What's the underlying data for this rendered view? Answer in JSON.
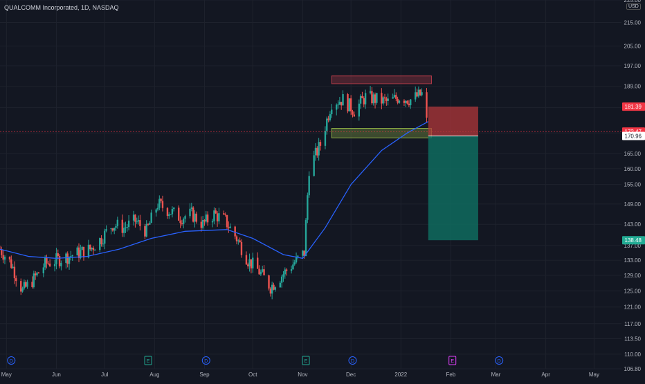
{
  "chart_data": {
    "type": "candlestick",
    "title": "QUALCOMM Incorporated, 1D, NASDAQ",
    "currency": "USD",
    "y_scale": "log",
    "ylim": [
      106.8,
      225.0
    ],
    "y_ticks": [
      "106.80",
      "110.00",
      "113.50",
      "117.00",
      "121.00",
      "125.00",
      "129.00",
      "133.00",
      "137.00",
      "143.00",
      "149.00",
      "155.00",
      "160.00",
      "165.00",
      "172.00",
      "181.00",
      "189.00",
      "197.00",
      "205.00",
      "215.00",
      "225.00"
    ],
    "x_ticks": [
      {
        "label": "May",
        "date": "2021-05-01"
      },
      {
        "label": "Jun",
        "date": "2021-06-01"
      },
      {
        "label": "Jul",
        "date": "2021-07-01"
      },
      {
        "label": "Aug",
        "date": "2021-08-01"
      },
      {
        "label": "Sep",
        "date": "2021-09-01"
      },
      {
        "label": "Oct",
        "date": "2021-10-01"
      },
      {
        "label": "Nov",
        "date": "2021-11-01"
      },
      {
        "label": "Dec",
        "date": "2021-12-01"
      },
      {
        "label": "2022",
        "date": "2022-01-01"
      },
      {
        "label": "Feb",
        "date": "2022-02-01"
      },
      {
        "label": "Mar",
        "date": "2022-03-01"
      },
      {
        "label": "Apr",
        "date": "2022-04-01"
      },
      {
        "label": "May",
        "date": "2022-05-01"
      }
    ],
    "xlim": [
      "2021-04-27",
      "2022-05-18"
    ],
    "price_series": [
      [
        "2021-04-27",
        136.0
      ],
      [
        "2021-05-04",
        132.0
      ],
      [
        "2021-05-11",
        125.0
      ],
      [
        "2021-05-18",
        128.0
      ],
      [
        "2021-05-25",
        132.0
      ],
      [
        "2021-06-01",
        133.0
      ],
      [
        "2021-06-08",
        134.0
      ],
      [
        "2021-06-15",
        135.0
      ],
      [
        "2021-06-22",
        136.0
      ],
      [
        "2021-06-29",
        139.0
      ],
      [
        "2021-07-06",
        143.0
      ],
      [
        "2021-07-13",
        142.0
      ],
      [
        "2021-07-20",
        144.0
      ],
      [
        "2021-07-27",
        141.0
      ],
      [
        "2021-08-03",
        149.0
      ],
      [
        "2021-08-10",
        147.0
      ],
      [
        "2021-08-17",
        145.0
      ],
      [
        "2021-08-24",
        146.0
      ],
      [
        "2021-08-31",
        143.0
      ],
      [
        "2021-09-07",
        146.0
      ],
      [
        "2021-09-14",
        144.0
      ],
      [
        "2021-09-21",
        139.0
      ],
      [
        "2021-09-28",
        133.0
      ],
      [
        "2021-10-05",
        130.0
      ],
      [
        "2021-10-12",
        126.0
      ],
      [
        "2021-10-19",
        129.0
      ],
      [
        "2021-10-26",
        132.0
      ],
      [
        "2021-11-02",
        135.0
      ],
      [
        "2021-11-05",
        160.0
      ],
      [
        "2021-11-12",
        168.0
      ],
      [
        "2021-11-19",
        183.0
      ],
      [
        "2021-11-26",
        184.0
      ],
      [
        "2021-12-03",
        180.0
      ],
      [
        "2021-12-10",
        185.0
      ],
      [
        "2021-12-17",
        184.0
      ],
      [
        "2021-12-24",
        183.0
      ],
      [
        "2021-12-31",
        185.0
      ],
      [
        "2022-01-07",
        184.0
      ],
      [
        "2022-01-14",
        186.0
      ],
      [
        "2022-01-18",
        172.47
      ]
    ],
    "moving_average": [
      [
        "2021-04-27",
        136.0
      ],
      [
        "2021-05-15",
        134.0
      ],
      [
        "2021-06-01",
        133.5
      ],
      [
        "2021-06-20",
        134.0
      ],
      [
        "2021-07-10",
        136.0
      ],
      [
        "2021-07-30",
        139.0
      ],
      [
        "2021-08-20",
        141.0
      ],
      [
        "2021-09-15",
        141.5
      ],
      [
        "2021-10-01",
        139.0
      ],
      [
        "2021-10-20",
        134.5
      ],
      [
        "2021-11-01",
        133.5
      ],
      [
        "2021-11-15",
        142.0
      ],
      [
        "2021-12-01",
        155.0
      ],
      [
        "2021-12-20",
        166.0
      ],
      [
        "2022-01-05",
        172.0
      ],
      [
        "2022-01-18",
        176.0
      ]
    ],
    "zones": [
      {
        "name": "resistance",
        "from": "2021-11-19",
        "to": "2022-01-20",
        "low": 190.0,
        "high": 193.0,
        "color": "#b03a48"
      },
      {
        "name": "support",
        "from": "2021-11-19",
        "to": "2022-01-20",
        "low": 170.3,
        "high": 173.6,
        "color": "#89a944"
      }
    ],
    "position": {
      "from": "2022-01-18",
      "to": "2022-02-18",
      "stop": 181.39,
      "entry": 170.96,
      "target": 138.48
    },
    "price_labels": [
      {
        "value": "181.39",
        "color": "#f23645"
      },
      {
        "value": "172.47",
        "color": "#f23645"
      },
      {
        "value": "170.96",
        "color": "#ffffff"
      },
      {
        "value": "138.48",
        "color": "#22ab94"
      }
    ],
    "current_price": 172.47,
    "event_markers": [
      {
        "label": "D",
        "date": "2021-05-04",
        "color": "#2962ff"
      },
      {
        "label": "E",
        "date": "2021-07-28",
        "color": "#22ab94"
      },
      {
        "label": "D",
        "date": "2021-09-02",
        "color": "#2962ff"
      },
      {
        "label": "E",
        "date": "2021-11-03",
        "color": "#22ab94"
      },
      {
        "label": "D",
        "date": "2021-12-02",
        "color": "#2962ff"
      },
      {
        "label": "E",
        "date": "2022-02-02",
        "color": "#e040fb"
      },
      {
        "label": "D",
        "date": "2022-03-03",
        "color": "#2962ff"
      }
    ],
    "colors": {
      "background": "#131722",
      "up": "#26a69a",
      "down": "#ef5350",
      "ma": "#2962ff",
      "grid": "#1e222d",
      "axis_text": "#b2b5be"
    }
  }
}
